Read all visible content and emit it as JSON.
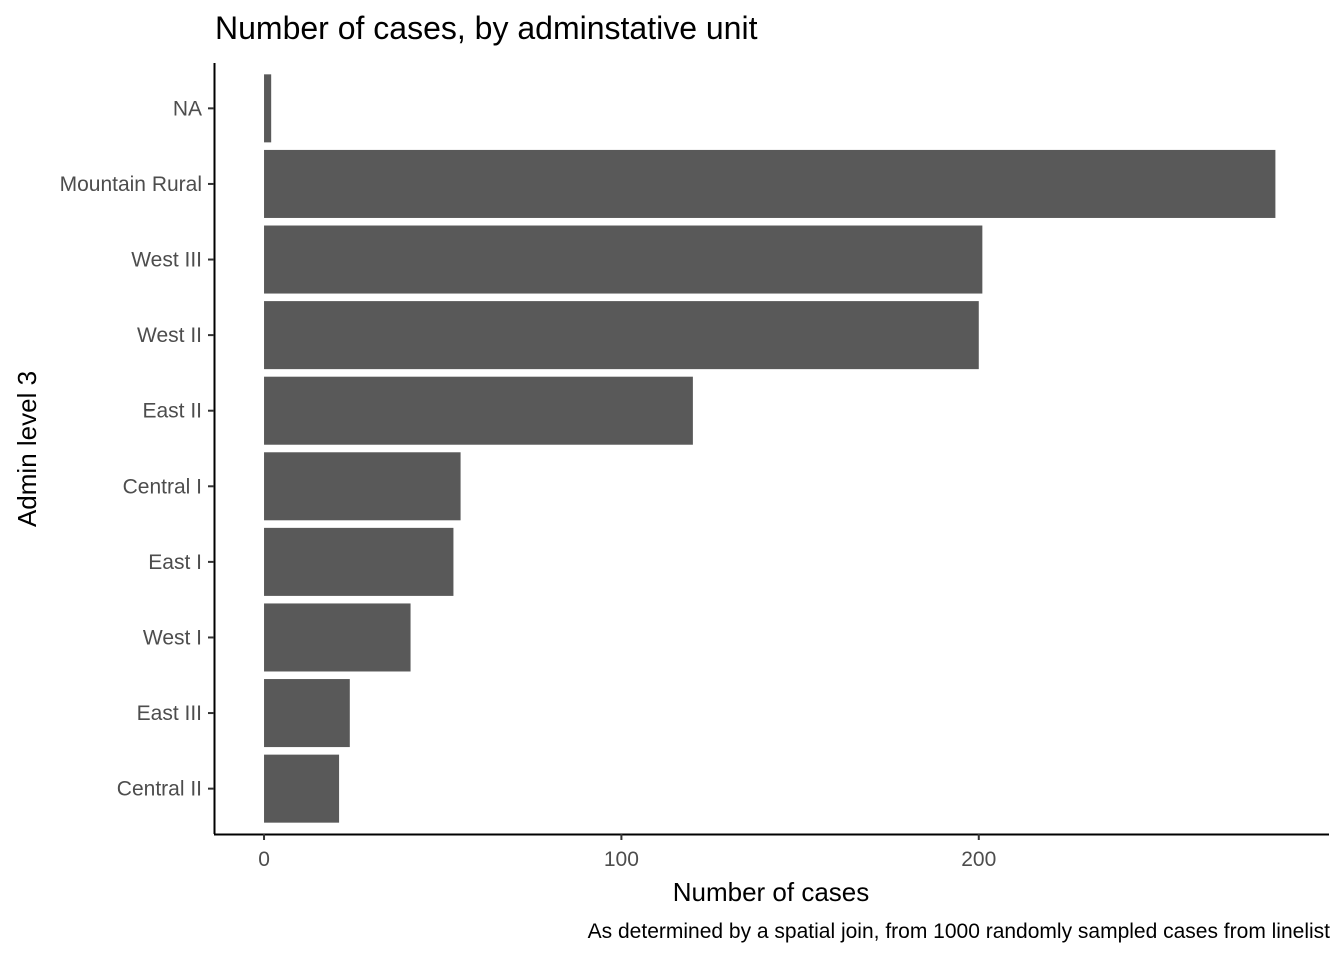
{
  "chart_data": {
    "type": "bar",
    "orientation": "horizontal",
    "title": "Number of cases, by adminstative unit",
    "caption": "As determined by a spatial join, from 1000 randomly sampled cases from linelist",
    "xlabel": "Number of cases",
    "ylabel": "Admin level 3",
    "categories": [
      "NA",
      "Mountain Rural",
      "West III",
      "West II",
      "East II",
      "Central I",
      "East I",
      "West I",
      "East III",
      "Central II"
    ],
    "values": [
      2,
      283,
      201,
      200,
      120,
      55,
      53,
      41,
      24,
      21
    ],
    "xlim": [
      -14,
      298
    ],
    "xticks": [
      0,
      100,
      200
    ],
    "bar_color": "#595959",
    "grid": false
  }
}
